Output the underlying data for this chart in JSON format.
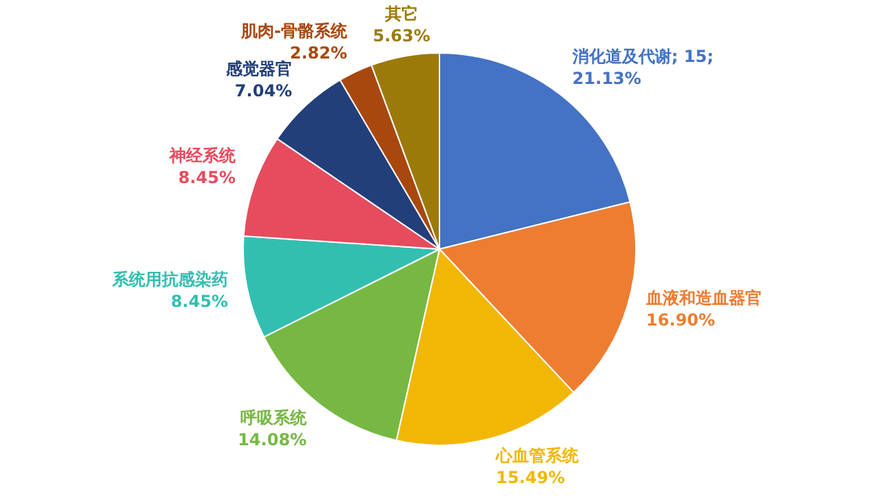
{
  "chart_data": {
    "type": "pie",
    "categories": [
      "消化道及代谢",
      "血液和造血器官",
      "心血管系统",
      "呼吸系统",
      "系统用抗感染药",
      "神经系统",
      "感觉器官",
      "肌肉-骨骼系统",
      "其它"
    ],
    "values": [
      21.13,
      16.9,
      15.49,
      14.08,
      8.45,
      8.45,
      7.04,
      2.82,
      5.63
    ],
    "value_labels": [
      "; 15;\n21.13%",
      "\n16.90%",
      "\n15.49%",
      "\n14.08%",
      "\n8.45%",
      "\n8.45%",
      "\n7.04%",
      "\n2.82%",
      "\n5.63%"
    ],
    "colors": [
      "#4472c4",
      "#ed7d31",
      "#f2b705",
      "#76b843",
      "#33bfb0",
      "#e64c5e",
      "#223f7a",
      "#a8480f",
      "#9c7a0a"
    ],
    "legend": false
  }
}
